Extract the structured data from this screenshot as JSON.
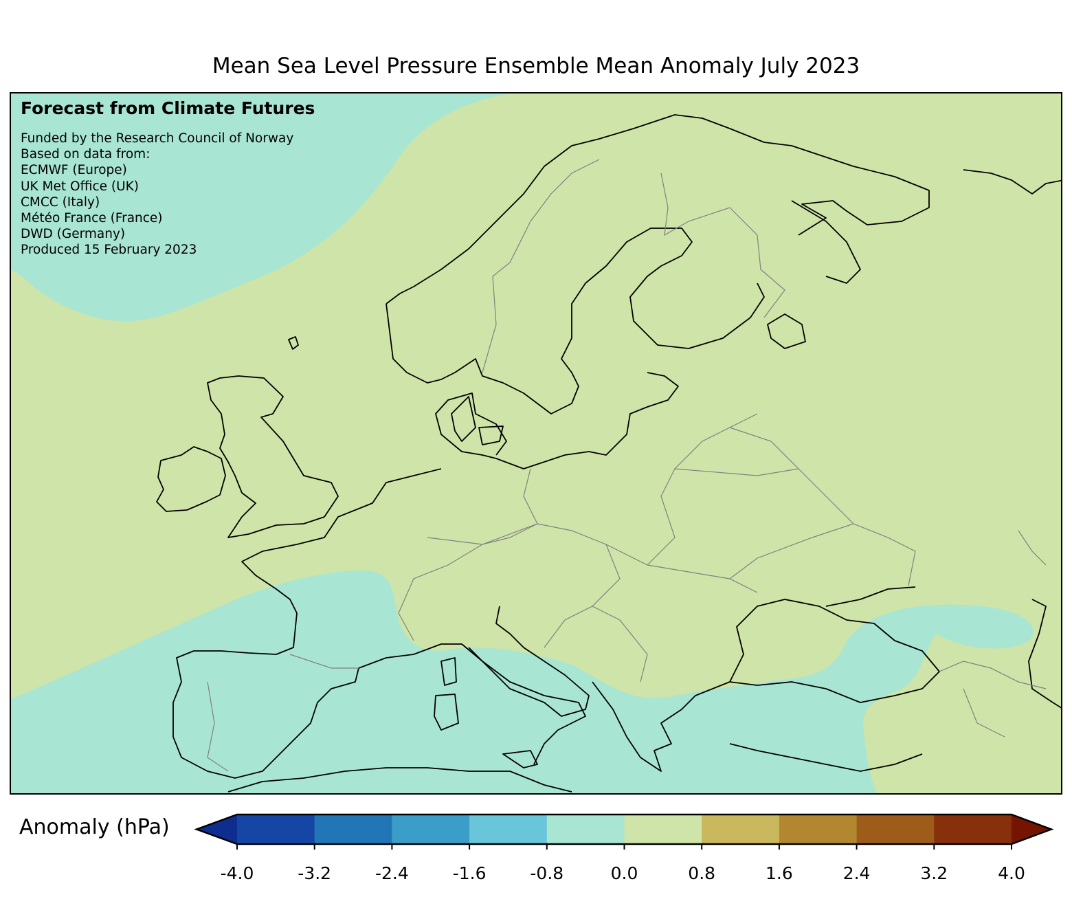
{
  "title": "Mean Sea Level Pressure Ensemble Mean Anomaly July 2023",
  "credits": {
    "heading": "Forecast from Climate Futures",
    "lines": [
      "Funded by the Research Council of Norway",
      "Based on data from:",
      "ECMWF (Europe)",
      "UK Met Office (UK)",
      "CMCC (Italy)",
      "Météo France (France)",
      "DWD (Germany)",
      "Produced 15 February 2023"
    ]
  },
  "colorbar": {
    "label": "Anomaly (hPa)",
    "ticks": [
      "-4.0",
      "-3.2",
      "-2.4",
      "-1.6",
      "-0.8",
      "0.0",
      "0.8",
      "1.6",
      "2.4",
      "3.2",
      "4.0"
    ],
    "min": -4.0,
    "max": 4.0,
    "colors": [
      "#0d2e8f",
      "#1546a6",
      "#2376b6",
      "#3b9ec8",
      "#69c5d9",
      "#a9e5d3",
      "#cfe4a8",
      "#c9b85d",
      "#b2872f",
      "#9d5c1a",
      "#87300c",
      "#761402"
    ],
    "extend": "both"
  },
  "map": {
    "region": "Europe",
    "colors": {
      "land_border": "#000000",
      "country_border": "#808080",
      "anomaly_negative_0_8_to_0": "#a9e5d3",
      "anomaly_positive_0_to_0_8": "#cfe4a8"
    }
  }
}
